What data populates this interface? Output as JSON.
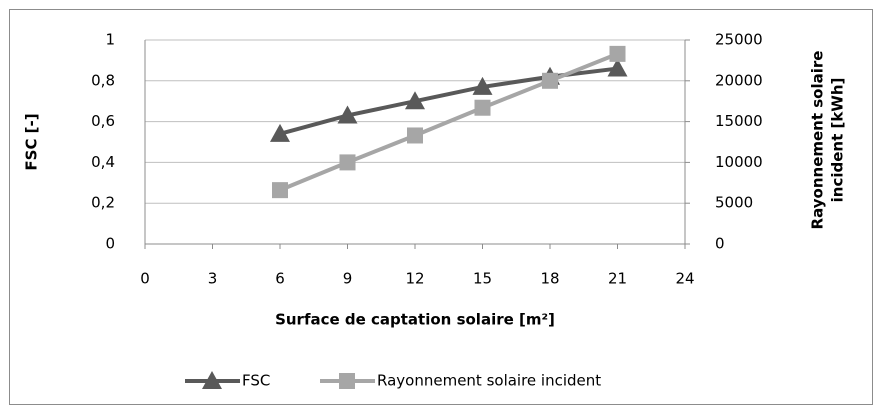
{
  "chart_data": {
    "type": "line",
    "xlabel": "Surface de captation solaire [m²]",
    "ylabel": "FSC [-]",
    "y2label": [
      "Rayonnement solaire",
      "incident [kWh]"
    ],
    "x": [
      6,
      9,
      12,
      15,
      18,
      21
    ],
    "series": [
      {
        "name": "FSC",
        "color": "#595959",
        "marker": "triangle",
        "values": [
          0.54,
          0.63,
          0.7,
          0.77,
          0.82,
          0.86
        ]
      },
      {
        "name": "Rayonnement solaire incident",
        "color": "#a6a6a6",
        "marker": "square",
        "axis": "y2",
        "values": [
          6600,
          10000,
          13300,
          16700,
          20000,
          23300
        ]
      }
    ],
    "xlim": [
      0,
      24
    ],
    "xticks": [
      0,
      3,
      6,
      9,
      12,
      15,
      18,
      21,
      24
    ],
    "ylim": [
      0,
      1
    ],
    "yticks": [
      0,
      {
        "value": 0.2,
        "label": "0,2"
      },
      {
        "value": 0.4,
        "label": "0,4"
      },
      {
        "value": 0.6,
        "label": "0,6"
      },
      {
        "value": 0.8,
        "label": "0,8"
      },
      1
    ],
    "y2lim": [
      0,
      25000
    ],
    "y2ticks": [
      0,
      5000,
      10000,
      15000,
      20000,
      25000
    ],
    "grid": true,
    "legend": "bottom"
  }
}
